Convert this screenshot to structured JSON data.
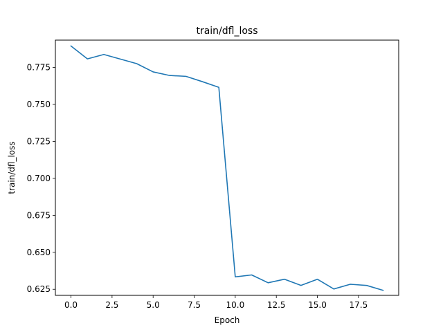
{
  "chart_data": {
    "type": "line",
    "title": "train/dfl_loss",
    "xlabel": "Epoch",
    "ylabel": "train/dfl_loss",
    "xlim": [
      -0.95,
      19.95
    ],
    "ylim": [
      0.6209,
      0.7935
    ],
    "x_ticks": [
      0.0,
      2.5,
      5.0,
      7.5,
      10.0,
      12.5,
      15.0,
      17.5
    ],
    "x_tick_labels": [
      "0.0",
      "2.5",
      "5.0",
      "7.5",
      "10.0",
      "12.5",
      "15.0",
      "17.5"
    ],
    "y_ticks": [
      0.625,
      0.65,
      0.675,
      0.7,
      0.725,
      0.75,
      0.775
    ],
    "y_tick_labels": [
      "0.625",
      "0.650",
      "0.675",
      "0.700",
      "0.725",
      "0.750",
      "0.775"
    ],
    "grid": false,
    "series": [
      {
        "color": "#1f77b4",
        "x": [
          0,
          1,
          2,
          3,
          4,
          5,
          6,
          7,
          8,
          9,
          10,
          11,
          12,
          13,
          14,
          15,
          16,
          17,
          18,
          19
        ],
        "y": [
          0.7895,
          0.7808,
          0.7838,
          0.7807,
          0.7776,
          0.772,
          0.7696,
          0.769,
          0.7654,
          0.7616,
          0.6334,
          0.6347,
          0.6294,
          0.6318,
          0.6276,
          0.6318,
          0.6252,
          0.6284,
          0.6276,
          0.6243
        ]
      }
    ]
  }
}
